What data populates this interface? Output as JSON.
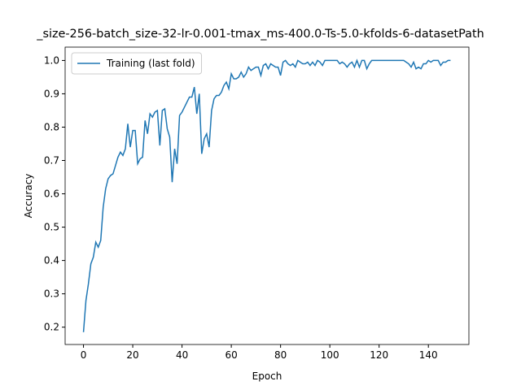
{
  "chart_data": {
    "type": "line",
    "title": "_size-256-batch_size-32-lr-0.001-tmax_ms-400.0-Ts-5.0-kfolds-6-datasetPath",
    "xlabel": "Epoch",
    "ylabel": "Accuracy",
    "x": [
      0,
      1,
      2,
      3,
      4,
      5,
      6,
      7,
      8,
      9,
      10,
      11,
      12,
      13,
      14,
      15,
      16,
      17,
      18,
      19,
      20,
      21,
      22,
      23,
      24,
      25,
      26,
      27,
      28,
      29,
      30,
      31,
      32,
      33,
      34,
      35,
      36,
      37,
      38,
      39,
      40,
      41,
      42,
      43,
      44,
      45,
      46,
      47,
      48,
      49,
      50,
      51,
      52,
      53,
      54,
      55,
      56,
      57,
      58,
      59,
      60,
      61,
      62,
      63,
      64,
      65,
      66,
      67,
      68,
      69,
      70,
      71,
      72,
      73,
      74,
      75,
      76,
      77,
      78,
      79,
      80,
      81,
      82,
      83,
      84,
      85,
      86,
      87,
      88,
      89,
      90,
      91,
      92,
      93,
      94,
      95,
      96,
      97,
      98,
      99,
      100,
      101,
      102,
      103,
      104,
      105,
      106,
      107,
      108,
      109,
      110,
      111,
      112,
      113,
      114,
      115,
      116,
      117,
      118,
      119,
      120,
      121,
      122,
      123,
      124,
      125,
      126,
      127,
      128,
      129,
      130,
      131,
      132,
      133,
      134,
      135,
      136,
      137,
      138,
      139,
      140,
      141,
      142,
      143,
      144,
      145,
      146,
      147,
      148,
      149
    ],
    "series": [
      {
        "name": "Training (last fold)",
        "color": "#1f77b4",
        "values": [
          0.185,
          0.28,
          0.33,
          0.39,
          0.41,
          0.455,
          0.44,
          0.46,
          0.56,
          0.615,
          0.645,
          0.655,
          0.66,
          0.685,
          0.71,
          0.725,
          0.715,
          0.735,
          0.81,
          0.74,
          0.79,
          0.79,
          0.69,
          0.705,
          0.71,
          0.82,
          0.78,
          0.84,
          0.83,
          0.845,
          0.85,
          0.745,
          0.85,
          0.855,
          0.795,
          0.77,
          0.635,
          0.735,
          0.69,
          0.835,
          0.845,
          0.86,
          0.875,
          0.89,
          0.89,
          0.92,
          0.84,
          0.9,
          0.72,
          0.765,
          0.78,
          0.74,
          0.85,
          0.885,
          0.895,
          0.895,
          0.905,
          0.925,
          0.935,
          0.915,
          0.96,
          0.945,
          0.945,
          0.95,
          0.965,
          0.95,
          0.96,
          0.98,
          0.97,
          0.975,
          0.98,
          0.98,
          0.955,
          0.985,
          0.99,
          0.975,
          0.99,
          0.985,
          0.98,
          0.98,
          0.955,
          0.995,
          1.0,
          0.99,
          0.985,
          0.99,
          0.98,
          1.0,
          0.995,
          0.99,
          0.99,
          0.995,
          0.985,
          0.995,
          0.985,
          1.0,
          0.995,
          0.985,
          1.0,
          1.0,
          1.0,
          1.0,
          1.0,
          1.0,
          0.99,
          0.995,
          0.99,
          0.98,
          0.99,
          0.995,
          0.98,
          1.0,
          0.98,
          1.0,
          1.0,
          0.975,
          0.99,
          1.0,
          1.0,
          1.0,
          1.0,
          1.0,
          1.0,
          1.0,
          1.0,
          1.0,
          1.0,
          1.0,
          1.0,
          1.0,
          1.0,
          0.995,
          0.99,
          0.98,
          0.995,
          0.975,
          0.98,
          0.975,
          0.99,
          0.99,
          1.0,
          0.995,
          1.0,
          1.0,
          1.0,
          0.985,
          0.995,
          0.995,
          1.0,
          1.0
        ]
      }
    ],
    "xlim": [
      -7.45,
      156.45
    ],
    "xticks": [
      0,
      20,
      40,
      60,
      80,
      100,
      120,
      140
    ],
    "ylim": [
      0.148,
      1.04
    ],
    "yticks": [
      0.2,
      0.3,
      0.4,
      0.5,
      0.6,
      0.7,
      0.8,
      0.9,
      {
        "value": 1,
        "label": "1.0"
      }
    ],
    "legend": "upper left"
  }
}
